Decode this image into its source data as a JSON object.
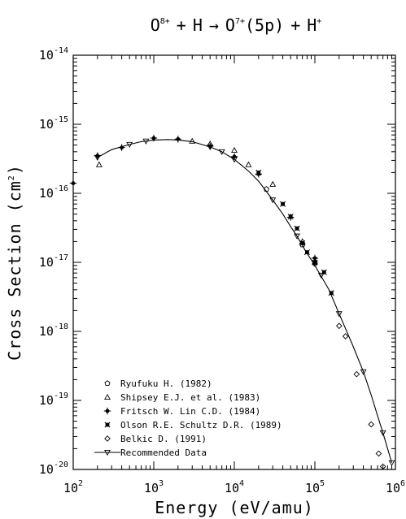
{
  "chart_data": {
    "type": "scatter",
    "title": {
      "ion": "O",
      "ion_charge": "8+",
      "plus1": "+",
      "target": "H",
      "arrow": "→",
      "product": "O",
      "product_charge": "7+",
      "state": "(5p)",
      "plus2": "+",
      "proton": "H",
      "proton_charge": "+"
    },
    "xlabel": "Energy (eV/amu)",
    "ylabel": {
      "prefix": "Cross Section (cm",
      "exp": "2",
      "suffix": ")"
    },
    "xscale": "log",
    "yscale": "log",
    "xlim": [
      100,
      1000000
    ],
    "ylim": [
      1e-20,
      1e-14
    ],
    "x_ticks": [
      {
        "base": "10",
        "exp": "2",
        "value": 100
      },
      {
        "base": "10",
        "exp": "3",
        "value": 1000
      },
      {
        "base": "10",
        "exp": "4",
        "value": 10000
      },
      {
        "base": "10",
        "exp": "5",
        "value": 100000
      },
      {
        "base": "10",
        "exp": "6",
        "value": 1000000
      }
    ],
    "y_ticks": [
      {
        "base": "10",
        "exp": "-14",
        "value": 1e-14
      },
      {
        "base": "10",
        "exp": "-15",
        "value": 1e-15
      },
      {
        "base": "10",
        "exp": "-16",
        "value": 1e-16
      },
      {
        "base": "10",
        "exp": "-17",
        "value": 1e-17
      },
      {
        "base": "10",
        "exp": "-18",
        "value": 1e-18
      },
      {
        "base": "10",
        "exp": "-19",
        "value": 1e-19
      },
      {
        "base": "10",
        "exp": "-20",
        "value": 1e-20
      }
    ],
    "legend_position": "bottom-left",
    "grid": false,
    "series": [
      {
        "name": "Ryufuku H. (1982)",
        "marker": "pentagon",
        "x": [
          25000,
          70000,
          100000
        ],
        "y": [
          1.15e-16,
          1.8e-17,
          1e-17
        ]
      },
      {
        "name": "Shipsey E.J. et al. (1983)",
        "marker": "triangle",
        "x": [
          210,
          3000,
          5000,
          10000,
          15000,
          30000,
          70000
        ],
        "y": [
          2.6e-16,
          5.7e-16,
          5.2e-16,
          4.2e-16,
          2.6e-16,
          1.35e-16,
          2e-17
        ]
      },
      {
        "name": "Fritsch W. Lin C.D. (1984)",
        "marker": "plus-circle",
        "x": [
          100,
          200,
          400,
          1000,
          2000,
          5000,
          10000,
          20000,
          50000,
          100000
        ],
        "y": [
          1.4e-16,
          3.5e-16,
          4.6e-16,
          6.3e-16,
          6.1e-16,
          4.8e-16,
          3.4e-16,
          1.9e-16,
          4.5e-17,
          1.15e-17
        ]
      },
      {
        "name": "Olson R.E. Schultz D.R. (1989)",
        "marker": "asterisk",
        "x": [
          20000,
          40000,
          50000,
          60000,
          70000,
          80000,
          100000,
          130000,
          160000
        ],
        "y": [
          2e-16,
          7e-17,
          4.6e-17,
          3.1e-17,
          1.9e-17,
          1.4e-17,
          1e-17,
          7.2e-18,
          3.6e-18
        ]
      },
      {
        "name": "Belkic D. (1991)",
        "marker": "diamond",
        "x": [
          100000,
          200000,
          240000,
          330000,
          500000,
          620000,
          700000
        ],
        "y": [
          9.5e-18,
          1.2e-18,
          8.5e-19,
          2.4e-19,
          4.5e-20,
          1.7e-20,
          1.1e-20
        ]
      },
      {
        "name": "Recommended Data",
        "marker": "inverted-triangle",
        "line": true,
        "x": [
          200,
          300,
          500,
          700,
          1000,
          1500,
          2000,
          3000,
          5000,
          7000,
          10000,
          15000,
          20000,
          30000,
          40000,
          50000,
          60000,
          70000,
          80000,
          100000,
          150000,
          200000,
          300000,
          400000,
          500000,
          600000,
          700000,
          800000,
          900000
        ],
        "y": [
          3.3e-16,
          4.3e-16,
          5.1e-16,
          5.6e-16,
          5.9e-16,
          6e-16,
          5.9e-16,
          5.6e-16,
          4.7e-16,
          4e-16,
          3.1e-16,
          2.1e-16,
          1.5e-16,
          8e-17,
          5e-17,
          3.3e-17,
          2.4e-17,
          1.75e-17,
          1.35e-17,
          9e-18,
          4e-18,
          1.8e-18,
          6e-19,
          2.6e-19,
          1.2e-19,
          6e-20,
          3.4e-20,
          2e-20,
          1.25e-20
        ],
        "marker_x": [
          200,
          500,
          800,
          5000,
          7000,
          10000,
          30000,
          60000,
          120000,
          200000,
          400000,
          700000,
          900000
        ],
        "marker_y": [
          3.3e-16,
          5.1e-16,
          5.7e-16,
          4.7e-16,
          4e-16,
          3.1e-16,
          8e-17,
          2.4e-17,
          6.5e-18,
          1.8e-18,
          2.6e-19,
          3.4e-20,
          1.25e-20
        ]
      }
    ]
  }
}
